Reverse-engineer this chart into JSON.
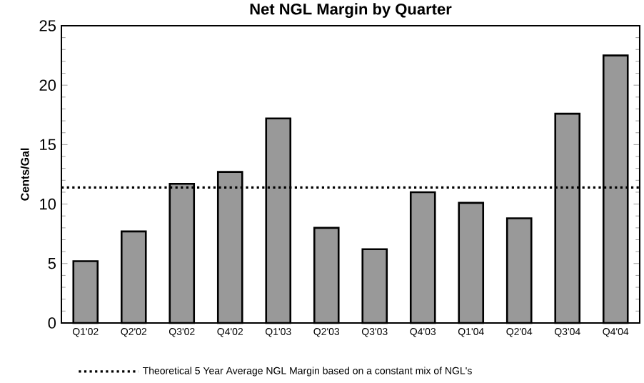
{
  "chart_data": {
    "type": "bar",
    "title": "Net NGL Margin by Quarter",
    "ylabel": "Cents/Gal",
    "categories": [
      "Q1'02",
      "Q2'02",
      "Q3'02",
      "Q4'02",
      "Q1'03",
      "Q2'03",
      "Q3'03",
      "Q4'03",
      "Q1'04",
      "Q2'04",
      "Q3'04",
      "Q4'04"
    ],
    "values": [
      5.2,
      7.7,
      11.7,
      12.7,
      17.2,
      8.0,
      6.2,
      11.0,
      10.1,
      8.8,
      17.6,
      22.5
    ],
    "color": "#999999",
    "ylim": [
      0,
      25
    ],
    "yticks": [
      0,
      5,
      10,
      15,
      20,
      25
    ],
    "ref_lines": [
      {
        "axis": "y",
        "value": 11.4,
        "label": "Theoretical 5 Year Average NGL Margin based on a constant mix of NGL's",
        "line_style": "dotted",
        "color": "#000000"
      }
    ]
  }
}
